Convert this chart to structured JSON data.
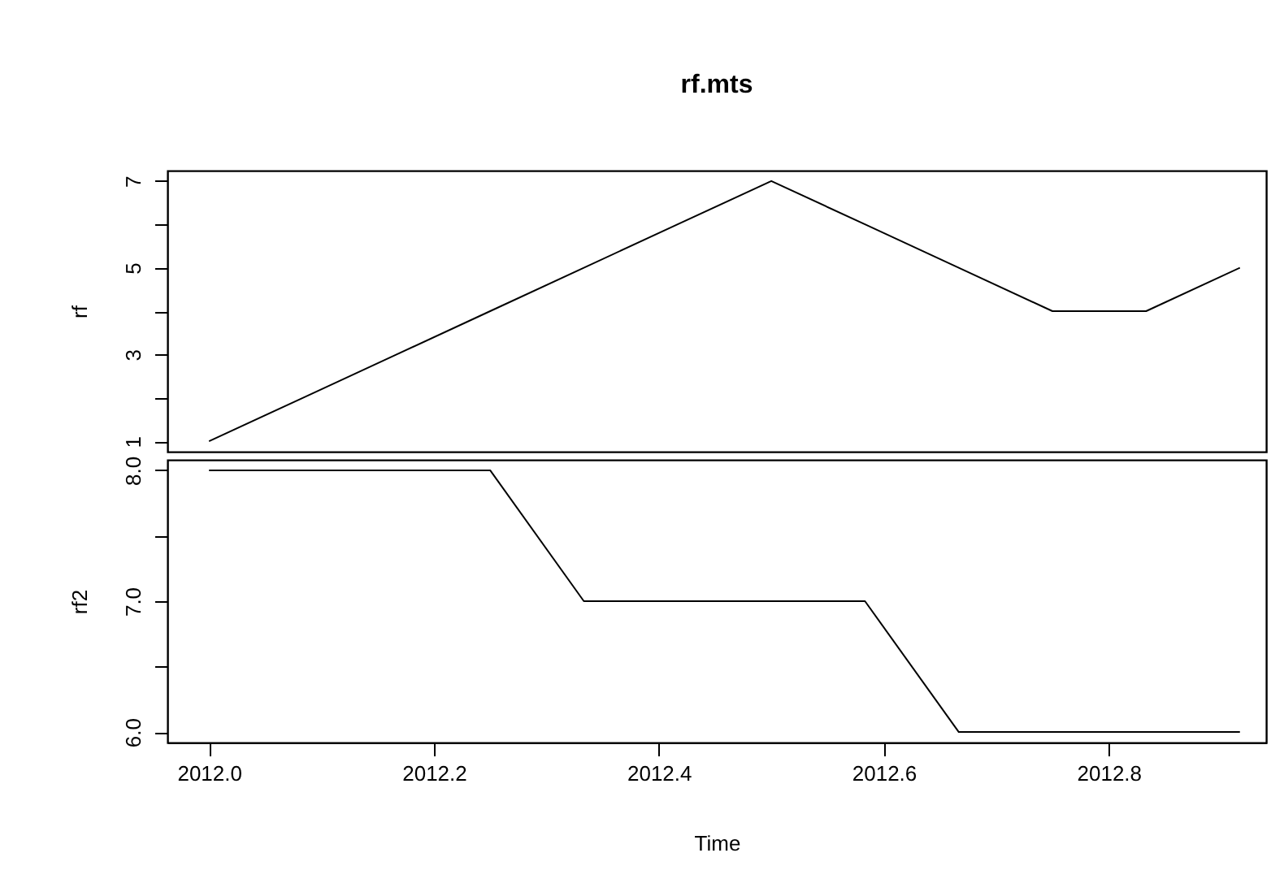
{
  "chart_data": [
    {
      "type": "line",
      "title": "rf.mts",
      "ylabel": "rf",
      "tick_labels": "y",
      "x": [
        2012,
        2012.0833,
        2012.1667,
        2012.25,
        2012.3333,
        2012.4167,
        2012.5,
        2012.5833,
        2012.6667,
        2012.75,
        2012.8333,
        2012.9167
      ],
      "series": [
        {
          "color": "#000000",
          "values": [
            1,
            2,
            3,
            4,
            5,
            6,
            7,
            6,
            5,
            4,
            4,
            5
          ]
        }
      ],
      "xlim": [
        2011.963,
        2012.94
      ],
      "ylim": [
        0.76,
        7.24
      ],
      "yticks": [
        1,
        {
          "value": 2,
          "label": null
        },
        3,
        {
          "value": 4,
          "label": null
        },
        5,
        {
          "value": 6,
          "label": null
        },
        7
      ]
    },
    {
      "type": "line",
      "xlabel": "Time",
      "ylabel": "rf2",
      "x": [
        2012,
        2012.0833,
        2012.1667,
        2012.25,
        2012.3333,
        2012.4167,
        2012.5,
        2012.5833,
        2012.6667,
        2012.75,
        2012.8333,
        2012.9167
      ],
      "series": [
        {
          "color": "#000000",
          "values": [
            8,
            8,
            8,
            8,
            7,
            7,
            7,
            7,
            6,
            6,
            6,
            6
          ]
        }
      ],
      "xlim": [
        2011.963,
        2012.94
      ],
      "ylim": [
        5.92,
        8.08
      ],
      "xticks": [
        {
          "value": 2012,
          "label": "2012.0"
        },
        2012.2,
        2012.4,
        2012.6,
        2012.8
      ],
      "yticks": [
        {
          "value": 6,
          "label": "6.0"
        },
        {
          "value": 6.5,
          "label": null
        },
        {
          "value": 7,
          "label": "7.0"
        },
        {
          "value": 7.5,
          "label": null
        },
        {
          "value": 8,
          "label": "8.0"
        }
      ]
    }
  ]
}
